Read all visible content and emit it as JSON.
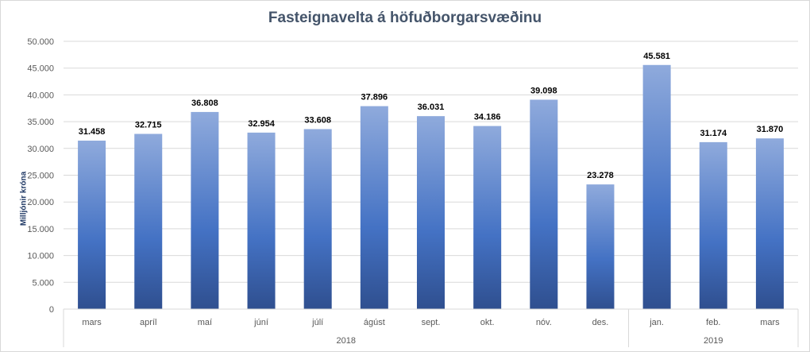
{
  "chart_data": {
    "type": "bar",
    "title": "Fasteignavelta á höfuðborgarsvæðinu",
    "ylabel": "Milljónir króna",
    "xlabel": "",
    "ylim": [
      0,
      50000
    ],
    "y_ticks": [
      "0",
      "5.000",
      "10.000",
      "15.000",
      "20.000",
      "25.000",
      "30.000",
      "35.000",
      "40.000",
      "45.000",
      "50.000"
    ],
    "categories": [
      "mars",
      "apríl",
      "maí",
      "júní",
      "júlí",
      "ágúst",
      "sept.",
      "okt.",
      "nóv.",
      "des.",
      "jan.",
      "feb.",
      "mars"
    ],
    "values": [
      31458,
      32715,
      36808,
      32954,
      33608,
      37896,
      36031,
      34186,
      39098,
      23278,
      45581,
      31174,
      31870
    ],
    "value_labels": [
      "31.458",
      "32.715",
      "36.808",
      "32.954",
      "33.608",
      "37.896",
      "36.031",
      "34.186",
      "39.098",
      "23.278",
      "45.581",
      "31.174",
      "31.870"
    ],
    "groups": [
      {
        "label": "2018",
        "count": 10
      },
      {
        "label": "2019",
        "count": 3
      }
    ],
    "grid": true,
    "legend": "none",
    "colors": {
      "bar_top": "#8faadc",
      "bar_mid": "#4472c4",
      "bar_bottom": "#2f4f8f",
      "grid": "#d9d9d9",
      "axis_text": "#595959",
      "title": "#44546a"
    }
  }
}
